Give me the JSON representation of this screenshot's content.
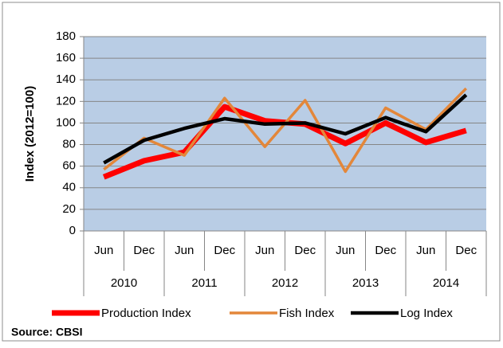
{
  "chart_data": {
    "type": "line",
    "categories": [
      "Jun",
      "Dec",
      "Jun",
      "Dec",
      "Jun",
      "Dec",
      "Jun",
      "Dec",
      "Jun",
      "Dec"
    ],
    "years": [
      "2010",
      "2011",
      "2012",
      "2013",
      "2014"
    ],
    "y_label": "Index (2012=100)",
    "ylim": [
      0,
      180
    ],
    "yticks": [
      0,
      20,
      40,
      60,
      80,
      100,
      120,
      140,
      160,
      180
    ],
    "grid": true,
    "legend": "bottom",
    "series": [
      {
        "name": "Production Index",
        "color": "#ff0000",
        "values": [
          50,
          65,
          73,
          115,
          102,
          99,
          81,
          100,
          82,
          93
        ]
      },
      {
        "name": "Fish Index",
        "color": "#e3873a",
        "values": [
          57,
          86,
          70,
          123,
          78,
          121,
          55,
          114,
          94,
          132
        ]
      },
      {
        "name": "Log  Index",
        "color": "#000000",
        "values": [
          63,
          84,
          95,
          104,
          99,
          100,
          90,
          105,
          92,
          126
        ]
      }
    ],
    "source": "Source: CBSI"
  }
}
